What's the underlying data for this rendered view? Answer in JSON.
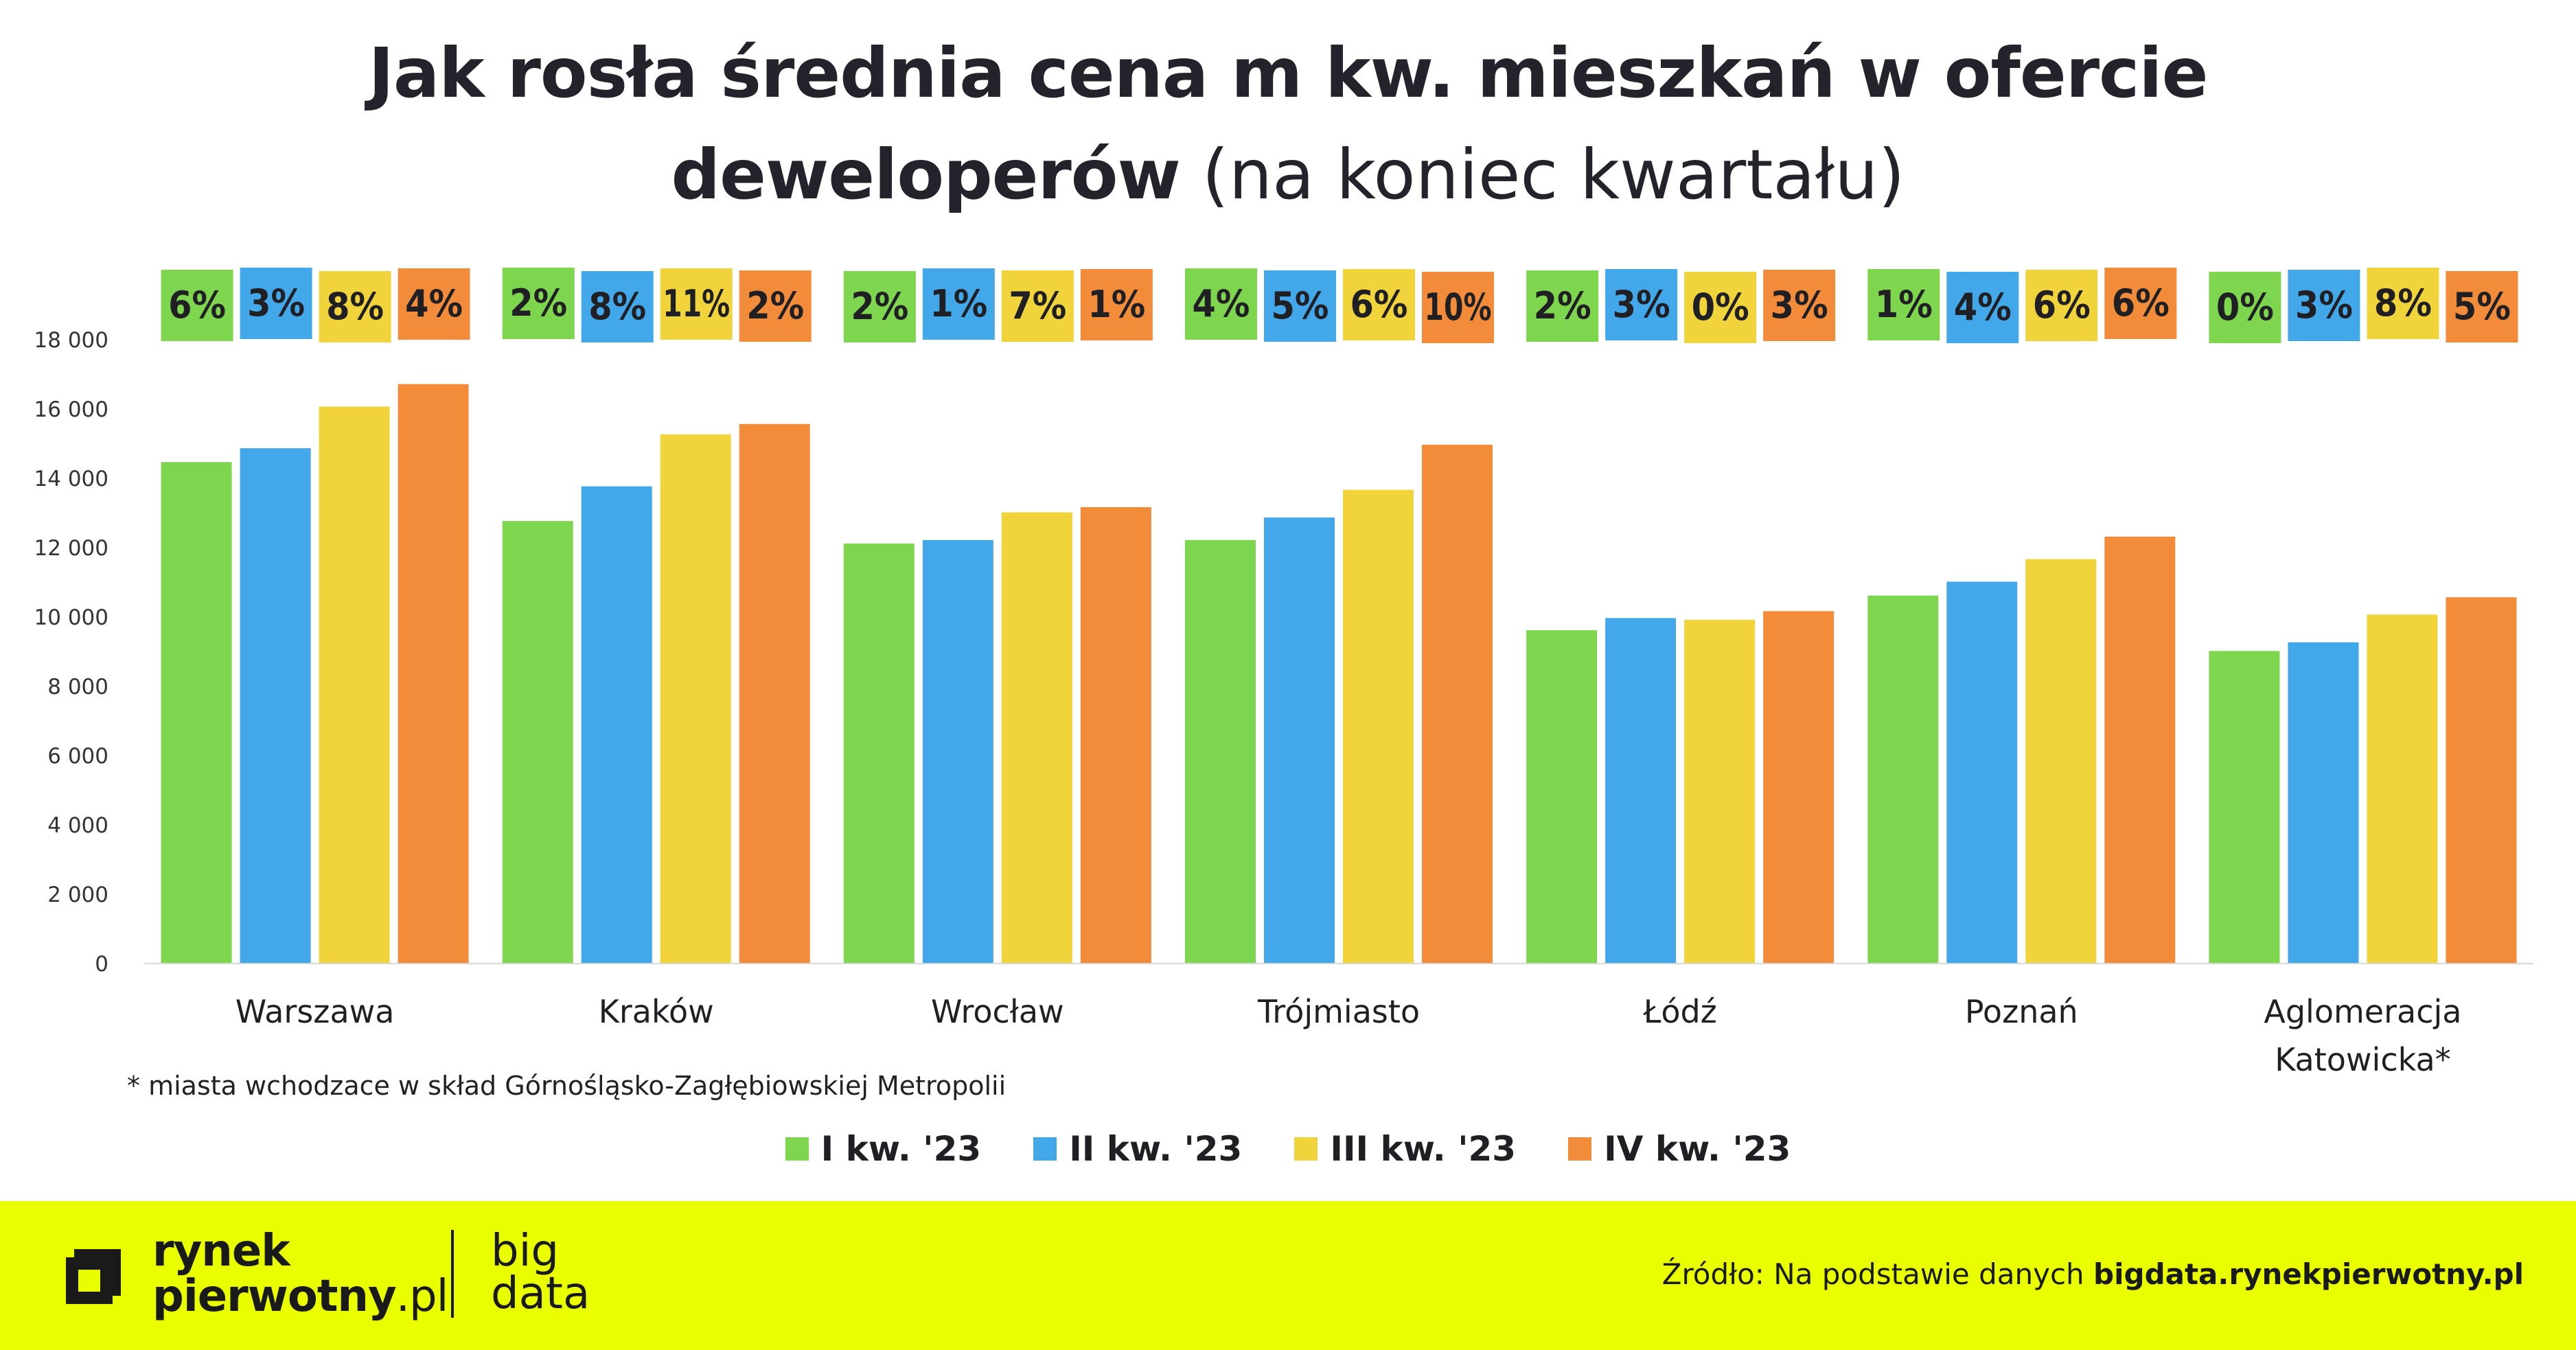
{
  "title": {
    "line1": "Jak rosła średnia cena m kw. mieszkań w ofercie",
    "line2_bold": "deweloperów",
    "line2_light": "(na koniec kwartału)"
  },
  "footnote": "* miasta wchodzace w skład Górnośląsko-Zagłębiowskiej Metropolii",
  "source": {
    "prefix": "Źródło: Na podstawie danych",
    "bold": "bigdata.rynekpierwotny.pl"
  },
  "logo": {
    "line1": "rynek",
    "line2_bold": "pierwotny",
    "line2_domain": ".pl",
    "bigdata_line1": "big",
    "bigdata_line2": "data",
    "mark_icon": "square-frame-logo-icon"
  },
  "colors": {
    "series": [
      "#7ed64f",
      "#43a8ea",
      "#f1d43b",
      "#f28c3a"
    ],
    "footer_bg": "#e9ff00",
    "title": "#24232b",
    "grid": "#e0e0e0",
    "text": "#1f1f24"
  },
  "chart_data": {
    "type": "bar",
    "ylim": [
      0,
      18000
    ],
    "yticks": [
      0,
      2000,
      4000,
      6000,
      8000,
      10000,
      12000,
      14000,
      16000,
      18000
    ],
    "ytick_labels": [
      "0",
      "2 000",
      "4 000",
      "6 000",
      "8 000",
      "10 000",
      "12 000",
      "14 000",
      "16 000",
      "18 000"
    ],
    "grid": false,
    "legend_position": "bottom",
    "categories": [
      "Warszawa",
      "Kraków",
      "Wrocław",
      "Trójmiasto",
      "Łódź",
      "Poznań",
      "Aglomeracja Katowicka*"
    ],
    "category_label_lines": [
      [
        "Warszawa"
      ],
      [
        "Kraków"
      ],
      [
        "Wrocław"
      ],
      [
        "Trójmiasto"
      ],
      [
        "Łódź"
      ],
      [
        "Poznań"
      ],
      [
        "Aglomeracja",
        "Katowicka*"
      ]
    ],
    "series": [
      {
        "name": "I kw. '23",
        "values": [
          14450,
          12750,
          12100,
          12200,
          9600,
          10600,
          9000
        ],
        "change_labels": [
          "6%",
          "2%",
          "2%",
          "4%",
          "2%",
          "1%",
          "0%"
        ]
      },
      {
        "name": "II kw. '23",
        "values": [
          14850,
          13750,
          12200,
          12850,
          9950,
          11000,
          9250
        ],
        "change_labels": [
          "3%",
          "8%",
          "1%",
          "5%",
          "3%",
          "4%",
          "3%"
        ]
      },
      {
        "name": "III kw. '23",
        "values": [
          16050,
          15250,
          13000,
          13650,
          9900,
          11650,
          10050
        ],
        "change_labels": [
          "8%",
          "11%",
          "7%",
          "6%",
          "0%",
          "6%",
          "8%"
        ]
      },
      {
        "name": "IV kw. '23",
        "values": [
          16700,
          15550,
          13150,
          14950,
          10150,
          12300,
          10550
        ],
        "change_labels": [
          "4%",
          "2%",
          "1%",
          "10%",
          "3%",
          "6%",
          "5%"
        ]
      }
    ]
  }
}
